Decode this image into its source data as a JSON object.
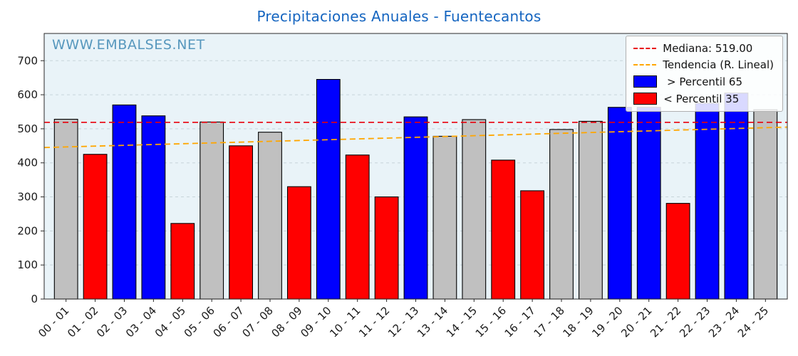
{
  "watermark": "WWW.EMBALSES.NET",
  "colors": {
    "title": "#1565c0",
    "watermark": "#4a90b8",
    "plot_bg": "#e9f3f8",
    "grid": "#c7d4da",
    "above": "#0000ff",
    "below": "#ff0000",
    "normal": "#c0c0c0",
    "bar_edge": "#000000",
    "median_line": "#e8000b",
    "trend_line": "#ffa600",
    "axis": "#2a2a2a",
    "tick_text": "#1a1a1a"
  },
  "chart_data": {
    "type": "bar",
    "title": "Precipitaciones Anuales - Fuentecantos",
    "categories": [
      "00 - 01",
      "01 - 02",
      "02 - 03",
      "03 - 04",
      "04 - 05",
      "05 - 06",
      "06 - 07",
      "07 - 08",
      "08 - 09",
      "09 - 10",
      "10 - 11",
      "11 - 12",
      "12 - 13",
      "13 - 14",
      "14 - 15",
      "15 - 16",
      "16 - 17",
      "17 - 18",
      "18 - 19",
      "19 - 20",
      "20 - 21",
      "21 - 22",
      "22 - 23",
      "23 - 24",
      "24 - 25"
    ],
    "values": [
      528,
      425,
      570,
      538,
      222,
      520,
      450,
      490,
      330,
      645,
      423,
      300,
      535,
      478,
      527,
      408,
      318,
      498,
      522,
      563,
      563,
      281,
      575,
      605,
      556
    ],
    "bar_classes": [
      "normal",
      "below",
      "above",
      "above",
      "below",
      "normal",
      "below",
      "normal",
      "below",
      "above",
      "below",
      "below",
      "above",
      "normal",
      "normal",
      "below",
      "below",
      "normal",
      "normal",
      "above",
      "above",
      "below",
      "above",
      "above",
      "normal"
    ],
    "median": 519.0,
    "median_label": "Mediana: 519.00",
    "trend_label": "Tendencia (R. Lineal)",
    "above_label": " > Percentil 65",
    "below_label": "< Percentil 35",
    "trend": {
      "start": 445,
      "end": 505
    },
    "ylim": [
      0,
      780
    ],
    "yticks": [
      0,
      100,
      200,
      300,
      400,
      500,
      600,
      700
    ],
    "xlabel": "",
    "ylabel": "",
    "grid": true,
    "legend_position": "upper right"
  }
}
